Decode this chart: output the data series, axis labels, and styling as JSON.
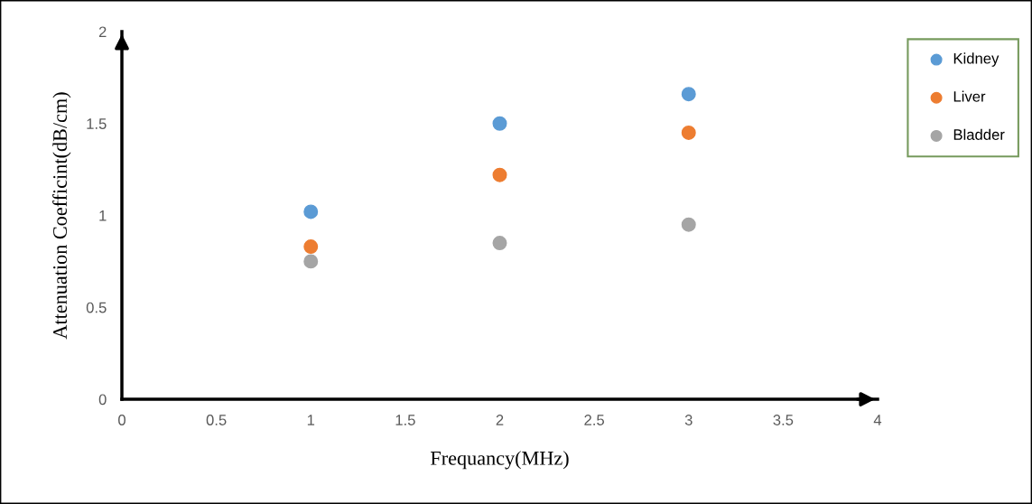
{
  "chart_data": {
    "type": "scatter",
    "xlabel": "Frequancy(MHz)",
    "ylabel": "Attenuation Coefficint(dB/cm)",
    "x": [
      1,
      2,
      3
    ],
    "series": [
      {
        "name": "Kidney",
        "color": "#5b9bd5",
        "values": [
          1.02,
          1.5,
          1.66
        ]
      },
      {
        "name": "Liver",
        "color": "#ed7d31",
        "values": [
          0.83,
          1.22,
          1.45
        ]
      },
      {
        "name": "Bladder",
        "color": "#a5a5a5",
        "values": [
          0.75,
          0.85,
          0.95
        ]
      }
    ],
    "xlim": [
      0,
      4
    ],
    "xticks": [
      0,
      0.5,
      1,
      1.5,
      2,
      2.5,
      3,
      3.5,
      4
    ],
    "ylim": [
      0,
      2
    ],
    "yticks": [
      0,
      0.5,
      1,
      1.5,
      2
    ],
    "grid": false,
    "legend": "top right",
    "marker": "circle"
  }
}
